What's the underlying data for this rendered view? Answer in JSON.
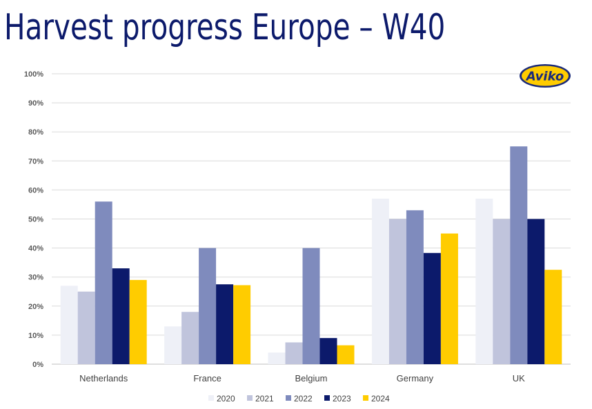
{
  "title": "Harvest progress Europe – W40",
  "logo": {
    "text": "Aviko",
    "color_fill": "#ffcc00",
    "color_text": "#1a2a7a"
  },
  "chart_data": {
    "type": "bar",
    "title": "Harvest progress Europe – W40",
    "xlabel": "",
    "ylabel": "",
    "ylim": [
      0,
      100
    ],
    "y_ticks": [
      "0%",
      "10%",
      "20%",
      "30%",
      "40%",
      "50%",
      "60%",
      "70%",
      "80%",
      "90%",
      "100%"
    ],
    "grid": true,
    "legend_position": "bottom",
    "categories": [
      "Netherlands",
      "France",
      "Belgium",
      "Germany",
      "UK"
    ],
    "series": [
      {
        "name": "2020",
        "color": "#eef0f7",
        "values": [
          27,
          13,
          4,
          57,
          57
        ]
      },
      {
        "name": "2021",
        "color": "#c0c4dc",
        "values": [
          25,
          18,
          7.5,
          50,
          50
        ]
      },
      {
        "name": "2022",
        "color": "#7f8bbd",
        "values": [
          56,
          40,
          40,
          53,
          75
        ]
      },
      {
        "name": "2023",
        "color": "#0c1a6b",
        "values": [
          33,
          27.5,
          9,
          38.3,
          50
        ]
      },
      {
        "name": "2024",
        "color": "#ffcc00",
        "values": [
          29,
          27.2,
          6.5,
          45,
          32.5
        ]
      }
    ]
  }
}
